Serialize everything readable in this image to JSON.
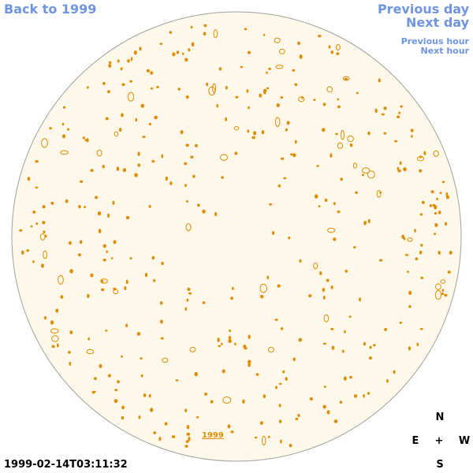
{
  "nav": {
    "back": "Back to 1999",
    "previous_day": "Previous day",
    "next_day": "Next day",
    "previous_hour": "Previous hour",
    "next_hour": "Next hour"
  },
  "disk": {
    "year_label": "1999"
  },
  "timestamp": "1999-02-14T03:11:32",
  "compass": {
    "north": "N",
    "east": "E",
    "center": "+",
    "west": "W",
    "south": "S"
  }
}
